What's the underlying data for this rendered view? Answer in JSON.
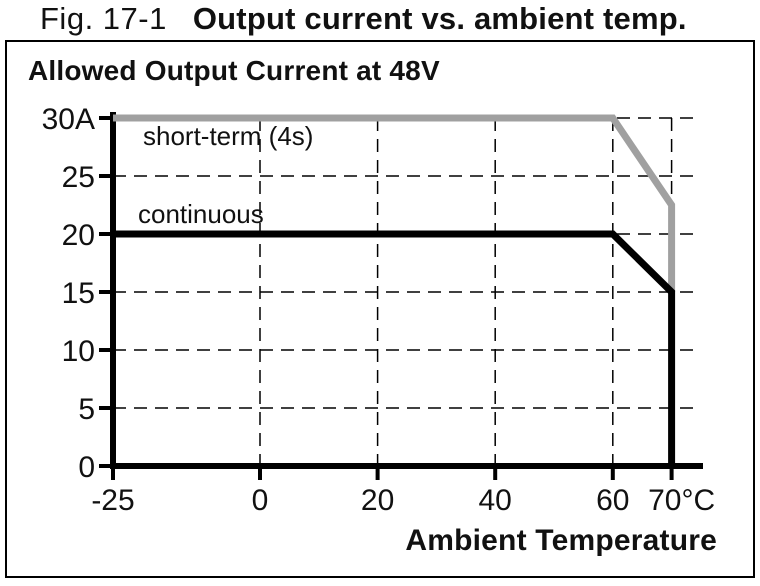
{
  "figure": {
    "number": "Fig. 17-1",
    "title": "Output current vs. ambient temp."
  },
  "chart": {
    "heading": "Allowed Output Current at 48V",
    "xlabel": "Ambient Temperature"
  },
  "colors": {
    "background": "#ffffff",
    "border": "#000000",
    "axis": "#000000",
    "grid": "#000000",
    "short_term_line": "#a0a0a0",
    "continuous_line": "#000000"
  },
  "chart_data": {
    "type": "line",
    "title": "Allowed Output Current at 48V",
    "xlabel": "Ambient Temperature",
    "ylabel": "Output current",
    "x_unit": "°C",
    "y_unit": "A",
    "xlim": [
      -25,
      75
    ],
    "ylim": [
      0,
      30
    ],
    "grid": {
      "style": "dashed",
      "x_values": [
        0,
        20,
        40,
        60,
        70
      ],
      "y_values": [
        5,
        10,
        15,
        20,
        25,
        30
      ]
    },
    "x_ticks": [
      {
        "value": -25,
        "label": "-25"
      },
      {
        "value": 0,
        "label": "0"
      },
      {
        "value": 20,
        "label": "20"
      },
      {
        "value": 40,
        "label": "40"
      },
      {
        "value": 60,
        "label": "60"
      },
      {
        "value": 70,
        "label": "70°C"
      }
    ],
    "y_ticks": [
      {
        "value": 0,
        "label": "0"
      },
      {
        "value": 5,
        "label": "5"
      },
      {
        "value": 10,
        "label": "10"
      },
      {
        "value": 15,
        "label": "15"
      },
      {
        "value": 20,
        "label": "20"
      },
      {
        "value": 25,
        "label": "25"
      },
      {
        "value": 30,
        "label": "30A"
      }
    ],
    "legend_position": "inline-labels",
    "series": [
      {
        "name": "short-term (4s)",
        "color": "#a0a0a0",
        "points": [
          [
            -25,
            30
          ],
          [
            60,
            30
          ],
          [
            70,
            22.5
          ],
          [
            70,
            15
          ]
        ]
      },
      {
        "name": "continuous",
        "color": "#000000",
        "points": [
          [
            -25,
            20
          ],
          [
            60,
            20
          ],
          [
            70,
            15
          ],
          [
            70,
            0
          ]
        ]
      }
    ]
  }
}
